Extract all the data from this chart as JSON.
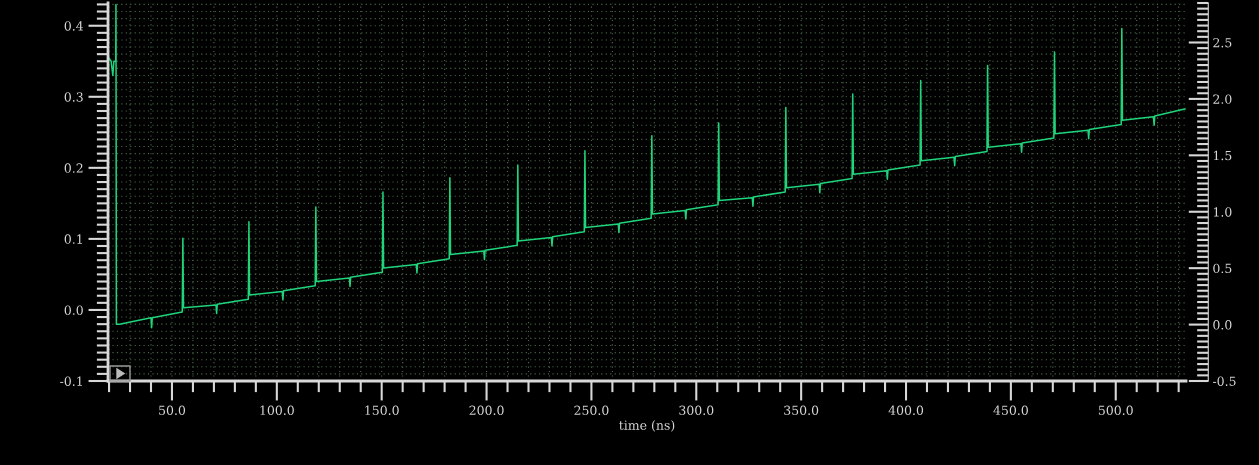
{
  "chart_data": {
    "type": "line",
    "xlabel": "time (ns)",
    "xlim": [
      19.5,
      533.5
    ],
    "xticks": [
      {
        "value": 50,
        "label": "50.0"
      },
      {
        "value": 100,
        "label": "100.0"
      },
      {
        "value": 150,
        "label": "150.0"
      },
      {
        "value": 200,
        "label": "200.0"
      },
      {
        "value": 250,
        "label": "250.0"
      },
      {
        "value": 300,
        "label": "300.0"
      },
      {
        "value": 350,
        "label": "350.0"
      },
      {
        "value": 400,
        "label": "400.0"
      },
      {
        "value": 450,
        "label": "450.0"
      },
      {
        "value": 500,
        "label": "500.0"
      }
    ],
    "ylim": [
      -0.1,
      0.432
    ],
    "yticks": [
      -0.1,
      {
        "value": 0,
        "label": "0.0"
      },
      0.1,
      0.2,
      0.3,
      0.4
    ],
    "y2lim": [
      -0.5,
      2.85
    ],
    "y2ticks": [
      -0.5,
      {
        "value": 0,
        "label": "0.0"
      },
      0.5,
      {
        "value": 1,
        "label": "1.0"
      },
      1.5,
      {
        "value": 2,
        "label": "2.0"
      },
      2.5
    ],
    "grid": true,
    "legend": false,
    "marker": "none",
    "line_style": "solid",
    "series": [
      {
        "color": "#1fd47a",
        "x": [
          19.8,
          21,
          21.8,
          22.3,
          23.2,
          23.3,
          23.5,
          25,
          40,
          40.3,
          40.6,
          54.9,
          55.2,
          55.5,
          71,
          71.3,
          71.6,
          86.4,
          86.7,
          87,
          102.6,
          102.9,
          103.2,
          118.3,
          118.6,
          118.9,
          134.6,
          134.9,
          135.2,
          150.3,
          150.6,
          150.9,
          166.5,
          166.8,
          167.1,
          182.2,
          182.5,
          182.8,
          198.7,
          199,
          199.3,
          214.6,
          214.9,
          215.2,
          230.9,
          231.2,
          231.5,
          246.6,
          246.9,
          247.2,
          262.8,
          263.1,
          263.4,
          278.5,
          278.8,
          279.1,
          294.7,
          295,
          295.3,
          310.4,
          310.7,
          311,
          326.7,
          327,
          327.3,
          342.4,
          342.7,
          343,
          358.6,
          358.9,
          359.2,
          374.3,
          374.6,
          374.9,
          390.8,
          391.1,
          391.4,
          406.7,
          407,
          407.3,
          422.9,
          423.2,
          423.5,
          438.6,
          438.9,
          439.2,
          454.8,
          455.1,
          455.4,
          470.5,
          470.8,
          471.1,
          486.8,
          487.1,
          487.4,
          502.6,
          502.9,
          503.2,
          518,
          518.3,
          518.6,
          533
        ],
        "values": [
          0.355,
          0.35,
          0.33,
          0.35,
          0.35,
          0.43,
          -0.02,
          -0.02,
          -0.011,
          -0.025,
          -0.011,
          -0.003,
          0.101,
          0.003,
          0.007,
          -0.005,
          0.008,
          0.015,
          0.124,
          0.021,
          0.026,
          0.014,
          0.027,
          0.034,
          0.145,
          0.04,
          0.045,
          0.033,
          0.046,
          0.053,
          0.166,
          0.059,
          0.064,
          0.052,
          0.065,
          0.072,
          0.186,
          0.078,
          0.083,
          0.071,
          0.084,
          0.091,
          0.204,
          0.097,
          0.102,
          0.09,
          0.103,
          0.11,
          0.224,
          0.116,
          0.121,
          0.109,
          0.122,
          0.129,
          0.245,
          0.135,
          0.14,
          0.128,
          0.141,
          0.148,
          0.263,
          0.154,
          0.158,
          0.146,
          0.159,
          0.166,
          0.285,
          0.172,
          0.177,
          0.165,
          0.178,
          0.185,
          0.304,
          0.191,
          0.196,
          0.184,
          0.197,
          0.204,
          0.323,
          0.21,
          0.215,
          0.203,
          0.216,
          0.223,
          0.344,
          0.229,
          0.234,
          0.222,
          0.235,
          0.242,
          0.363,
          0.248,
          0.253,
          0.241,
          0.254,
          0.261,
          0.396,
          0.267,
          0.272,
          0.26,
          0.273,
          0.283
        ]
      }
    ]
  }
}
